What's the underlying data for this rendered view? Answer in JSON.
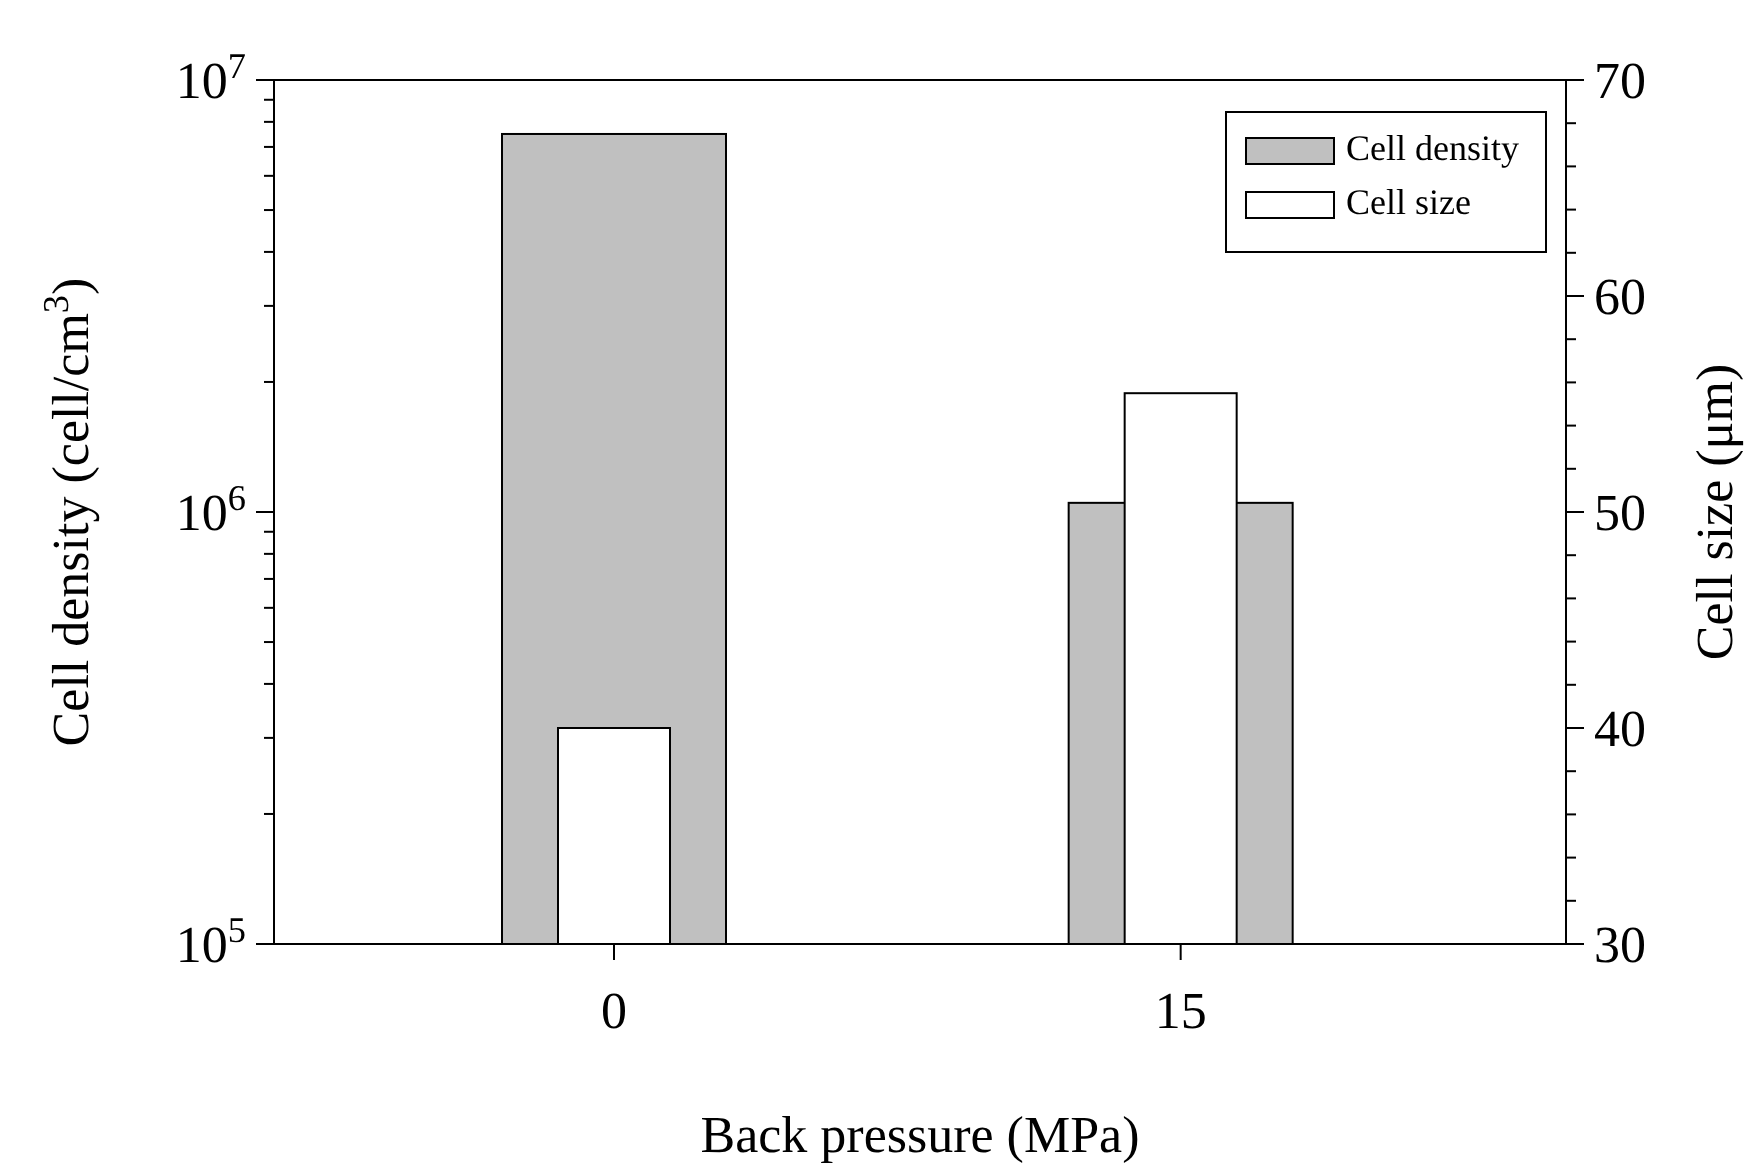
{
  "chart_data": {
    "type": "bar",
    "xlabel": "Back pressure (MPa)",
    "ylabel": "Cell density (cell/cm$^{3}$)",
    "y2label": "Cell size (μm)",
    "categories": [
      "0",
      "15"
    ],
    "series": [
      {
        "name": "Cell density",
        "color": "#c0c0c0",
        "values": [
          7500000,
          1050000
        ]
      },
      {
        "name": "Cell size",
        "color": "#ffffff",
        "values": [
          40,
          55.5
        ],
        "axis": "y2"
      }
    ],
    "log": "y",
    "ylim": [
      100000,
      10000000
    ],
    "yticks": [
      {
        "value": 100000,
        "label": "10$^{5}$"
      },
      {
        "value": 200000,
        "label": null
      },
      {
        "value": 300000,
        "label": null
      },
      {
        "value": 400000,
        "label": null
      },
      {
        "value": 500000,
        "label": null
      },
      {
        "value": 600000,
        "label": null
      },
      {
        "value": 700000,
        "label": null
      },
      {
        "value": 800000,
        "label": null
      },
      {
        "value": 900000,
        "label": null
      },
      {
        "value": 1000000,
        "label": "10$^{6}$"
      },
      {
        "value": 2000000,
        "label": null
      },
      {
        "value": 3000000,
        "label": null
      },
      {
        "value": 4000000,
        "label": null
      },
      {
        "value": 5000000,
        "label": null
      },
      {
        "value": 6000000,
        "label": null
      },
      {
        "value": 7000000,
        "label": null
      },
      {
        "value": 8000000,
        "label": null
      },
      {
        "value": 9000000,
        "label": null
      },
      {
        "value": 10000000,
        "label": "10$^{7}$"
      }
    ],
    "y2lim": [
      30,
      70
    ],
    "y2ticks": [
      30,
      {
        "value": 32,
        "label": null
      },
      {
        "value": 34,
        "label": null
      },
      {
        "value": 36,
        "label": null
      },
      {
        "value": 38,
        "label": null
      },
      40,
      {
        "value": 42,
        "label": null
      },
      {
        "value": 44,
        "label": null
      },
      {
        "value": 46,
        "label": null
      },
      {
        "value": 48,
        "label": null
      },
      50,
      {
        "value": 52,
        "label": null
      },
      {
        "value": 54,
        "label": null
      },
      {
        "value": 56,
        "label": null
      },
      {
        "value": 58,
        "label": null
      },
      60,
      {
        "value": 62,
        "label": null
      },
      {
        "value": 64,
        "label": null
      },
      {
        "value": 66,
        "label": null
      },
      {
        "value": 68,
        "label": null
      },
      70
    ],
    "legend": "top right",
    "grid": false
  }
}
